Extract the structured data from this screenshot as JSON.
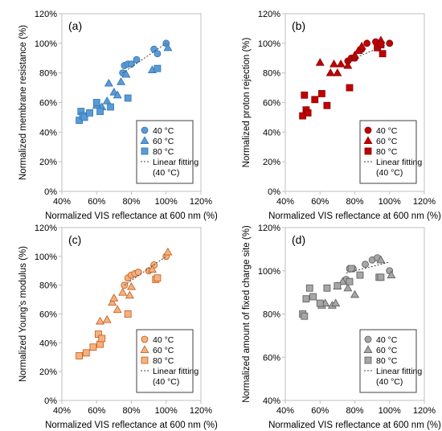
{
  "chart_data": [
    {
      "type": "scatter",
      "panel_label": "(a)",
      "xlabel": "Normalized VIS reflectance at 600 nm (%)",
      "ylabel": "Normalized membrane resistance (%)",
      "xlim": [
        40,
        120
      ],
      "ylim": [
        0,
        120
      ],
      "xticks": [
        "40%",
        "60%",
        "80%",
        "100%",
        "120%"
      ],
      "yticks": [
        "0%",
        "20%",
        "40%",
        "60%",
        "80%",
        "100%",
        "120%"
      ],
      "legend_position": "bottom-right",
      "legend": [
        "40 °C",
        "60 °C",
        "80 °C",
        "Linear fitting",
        "(40 °C)"
      ],
      "color": "#5b9bd5",
      "edge": "#2e75b6",
      "series": [
        {
          "name": "40 °C",
          "marker": "circle",
          "points": [
            [
              75,
              80
            ],
            [
              76,
              85
            ],
            [
              78,
              86
            ],
            [
              80,
              86
            ],
            [
              83,
              89
            ],
            [
              93,
              96
            ],
            [
              95,
              93
            ],
            [
              100,
              100
            ]
          ]
        },
        {
          "name": "60 °C",
          "marker": "triangle",
          "points": [
            [
              60,
              58
            ],
            [
              63,
              57
            ],
            [
              66,
              61
            ],
            [
              67,
              73
            ],
            [
              70,
              67
            ],
            [
              72,
              65
            ],
            [
              74,
              74
            ],
            [
              77,
              79
            ],
            [
              92,
              82
            ],
            [
              101,
              97
            ]
          ]
        },
        {
          "name": "80 °C",
          "marker": "square",
          "points": [
            [
              50,
              48
            ],
            [
              51,
              54
            ],
            [
              52,
              51
            ],
            [
              53,
              50
            ],
            [
              56,
              53
            ],
            [
              60,
              60
            ],
            [
              62,
              54
            ],
            [
              68,
              57
            ],
            [
              78,
              63
            ],
            [
              95,
              83
            ]
          ]
        }
      ],
      "fit": {
        "x": [
          75,
          100
        ],
        "y": [
          80,
          100
        ]
      }
    },
    {
      "type": "scatter",
      "panel_label": "(b)",
      "xlabel": "Normalized VIS reflectance at 600 nm (%)",
      "ylabel": "Normalized proton rejection (%)",
      "xlim": [
        40,
        120
      ],
      "ylim": [
        0,
        120
      ],
      "xticks": [
        "40%",
        "60%",
        "80%",
        "100%",
        "120%"
      ],
      "yticks": [
        "0%",
        "20%",
        "40%",
        "60%",
        "80%",
        "100%",
        "120%"
      ],
      "legend_position": "bottom-right",
      "legend": [
        "40 °C",
        "60 °C",
        "80 °C",
        "Linear fitting",
        "(40 °C)"
      ],
      "color": "#c00000",
      "edge": "#8b0000",
      "series": [
        {
          "name": "40 °C",
          "marker": "circle",
          "points": [
            [
              76,
              88
            ],
            [
              78,
              90
            ],
            [
              80,
              90
            ],
            [
              84,
              96
            ],
            [
              87,
              100
            ],
            [
              92,
              101
            ],
            [
              94,
              99
            ],
            [
              100,
              100
            ]
          ]
        },
        {
          "name": "60 °C",
          "marker": "triangle",
          "points": [
            [
              60,
              87
            ],
            [
              66,
              80
            ],
            [
              68,
              86
            ],
            [
              70,
              80
            ],
            [
              72,
              86
            ],
            [
              76,
              85
            ],
            [
              80,
              92
            ],
            [
              82,
              95
            ],
            [
              84,
              98
            ],
            [
              95,
              102
            ]
          ]
        },
        {
          "name": "80 °C",
          "marker": "square",
          "points": [
            [
              50,
              51
            ],
            [
              51,
              65
            ],
            [
              52,
              55
            ],
            [
              53,
              53
            ],
            [
              57,
              62
            ],
            [
              61,
              66
            ],
            [
              64,
              58
            ],
            [
              77,
              70
            ],
            [
              93,
              97
            ],
            [
              95,
              99
            ],
            [
              96,
              93
            ]
          ]
        }
      ],
      "fit": {
        "x": [
          76,
          100
        ],
        "y": [
          88,
          100
        ]
      }
    },
    {
      "type": "scatter",
      "panel_label": "(c)",
      "xlabel": "Normalized VIS reflectance at 600 nm (%)",
      "ylabel": "Normalized Young's modulus (%)",
      "xlim": [
        40,
        120
      ],
      "ylim": [
        0,
        120
      ],
      "xticks": [
        "40%",
        "60%",
        "80%",
        "100%",
        "120%"
      ],
      "yticks": [
        "0%",
        "20%",
        "40%",
        "60%",
        "80%",
        "100%",
        "120%"
      ],
      "legend_position": "bottom-right",
      "legend": [
        "40 °C",
        "60 °C",
        "80 °C",
        "Linear fitting",
        "(40 °C)"
      ],
      "color": "#f4b183",
      "edge": "#c55a11",
      "series": [
        {
          "name": "40 °C",
          "marker": "circle",
          "points": [
            [
              76,
              80
            ],
            [
              78,
              85
            ],
            [
              80,
              87
            ],
            [
              82,
              88
            ],
            [
              84,
              89
            ],
            [
              90,
              90
            ],
            [
              93,
              94
            ],
            [
              100,
              100
            ]
          ]
        },
        {
          "name": "60 °C",
          "marker": "triangle",
          "points": [
            [
              62,
              55
            ],
            [
              66,
              56
            ],
            [
              69,
              68
            ],
            [
              70,
              71
            ],
            [
              72,
              63
            ],
            [
              75,
              75
            ],
            [
              79,
              73
            ],
            [
              80,
              79
            ],
            [
              92,
              91
            ],
            [
              101,
              103
            ]
          ]
        },
        {
          "name": "80 °C",
          "marker": "square",
          "points": [
            [
              50,
              31
            ],
            [
              54,
              33
            ],
            [
              58,
              37
            ],
            [
              61,
              46
            ],
            [
              62,
              39
            ],
            [
              63,
              43
            ],
            [
              78,
              60
            ],
            [
              94,
              84
            ],
            [
              95,
              85
            ]
          ]
        }
      ],
      "fit": {
        "x": [
          76,
          100
        ],
        "y": [
          80,
          100
        ]
      }
    },
    {
      "type": "scatter",
      "panel_label": "(d)",
      "xlabel": "Normalized VIS reflectance at 600 nm (%)",
      "ylabel": "Normalized amount of fixed charge site (%)",
      "xlim": [
        40,
        120
      ],
      "ylim": [
        40,
        120
      ],
      "xticks": [
        "40%",
        "60%",
        "80%",
        "100%",
        "120%"
      ],
      "yticks": [
        "40%",
        "60%",
        "80%",
        "100%",
        "120%"
      ],
      "legend_position": "bottom-right",
      "legend": [
        "40 °C",
        "60 °C",
        "80 °C",
        "Linear fitting",
        "(40 °C)"
      ],
      "color": "#a6a6a6",
      "edge": "#595959",
      "series": [
        {
          "name": "40 °C",
          "marker": "circle",
          "points": [
            [
              75,
              96
            ],
            [
              77,
              101
            ],
            [
              79,
              101
            ],
            [
              83,
              98
            ],
            [
              86,
              103
            ],
            [
              90,
              105
            ],
            [
              93,
              106
            ],
            [
              100,
              100
            ]
          ]
        },
        {
          "name": "60 °C",
          "marker": "triangle",
          "points": [
            [
              61,
              84
            ],
            [
              63,
              85
            ],
            [
              67,
              84
            ],
            [
              69,
              85
            ],
            [
              70,
              93
            ],
            [
              73,
              95
            ],
            [
              76,
              92
            ],
            [
              80,
              89
            ],
            [
              95,
              105
            ],
            [
              101,
              98
            ]
          ]
        },
        {
          "name": "80 °C",
          "marker": "square",
          "points": [
            [
              50,
              80
            ],
            [
              51,
              79
            ],
            [
              52,
              87
            ],
            [
              54,
              92
            ],
            [
              56,
              88
            ],
            [
              60,
              85
            ],
            [
              64,
              92
            ],
            [
              70,
              93
            ],
            [
              77,
              95
            ],
            [
              78,
              101
            ],
            [
              83,
              98
            ],
            [
              94,
              97
            ],
            [
              95,
              97
            ]
          ]
        }
      ],
      "fit": {
        "x": [
          75,
          100
        ],
        "y": [
          99,
          104
        ]
      }
    }
  ]
}
